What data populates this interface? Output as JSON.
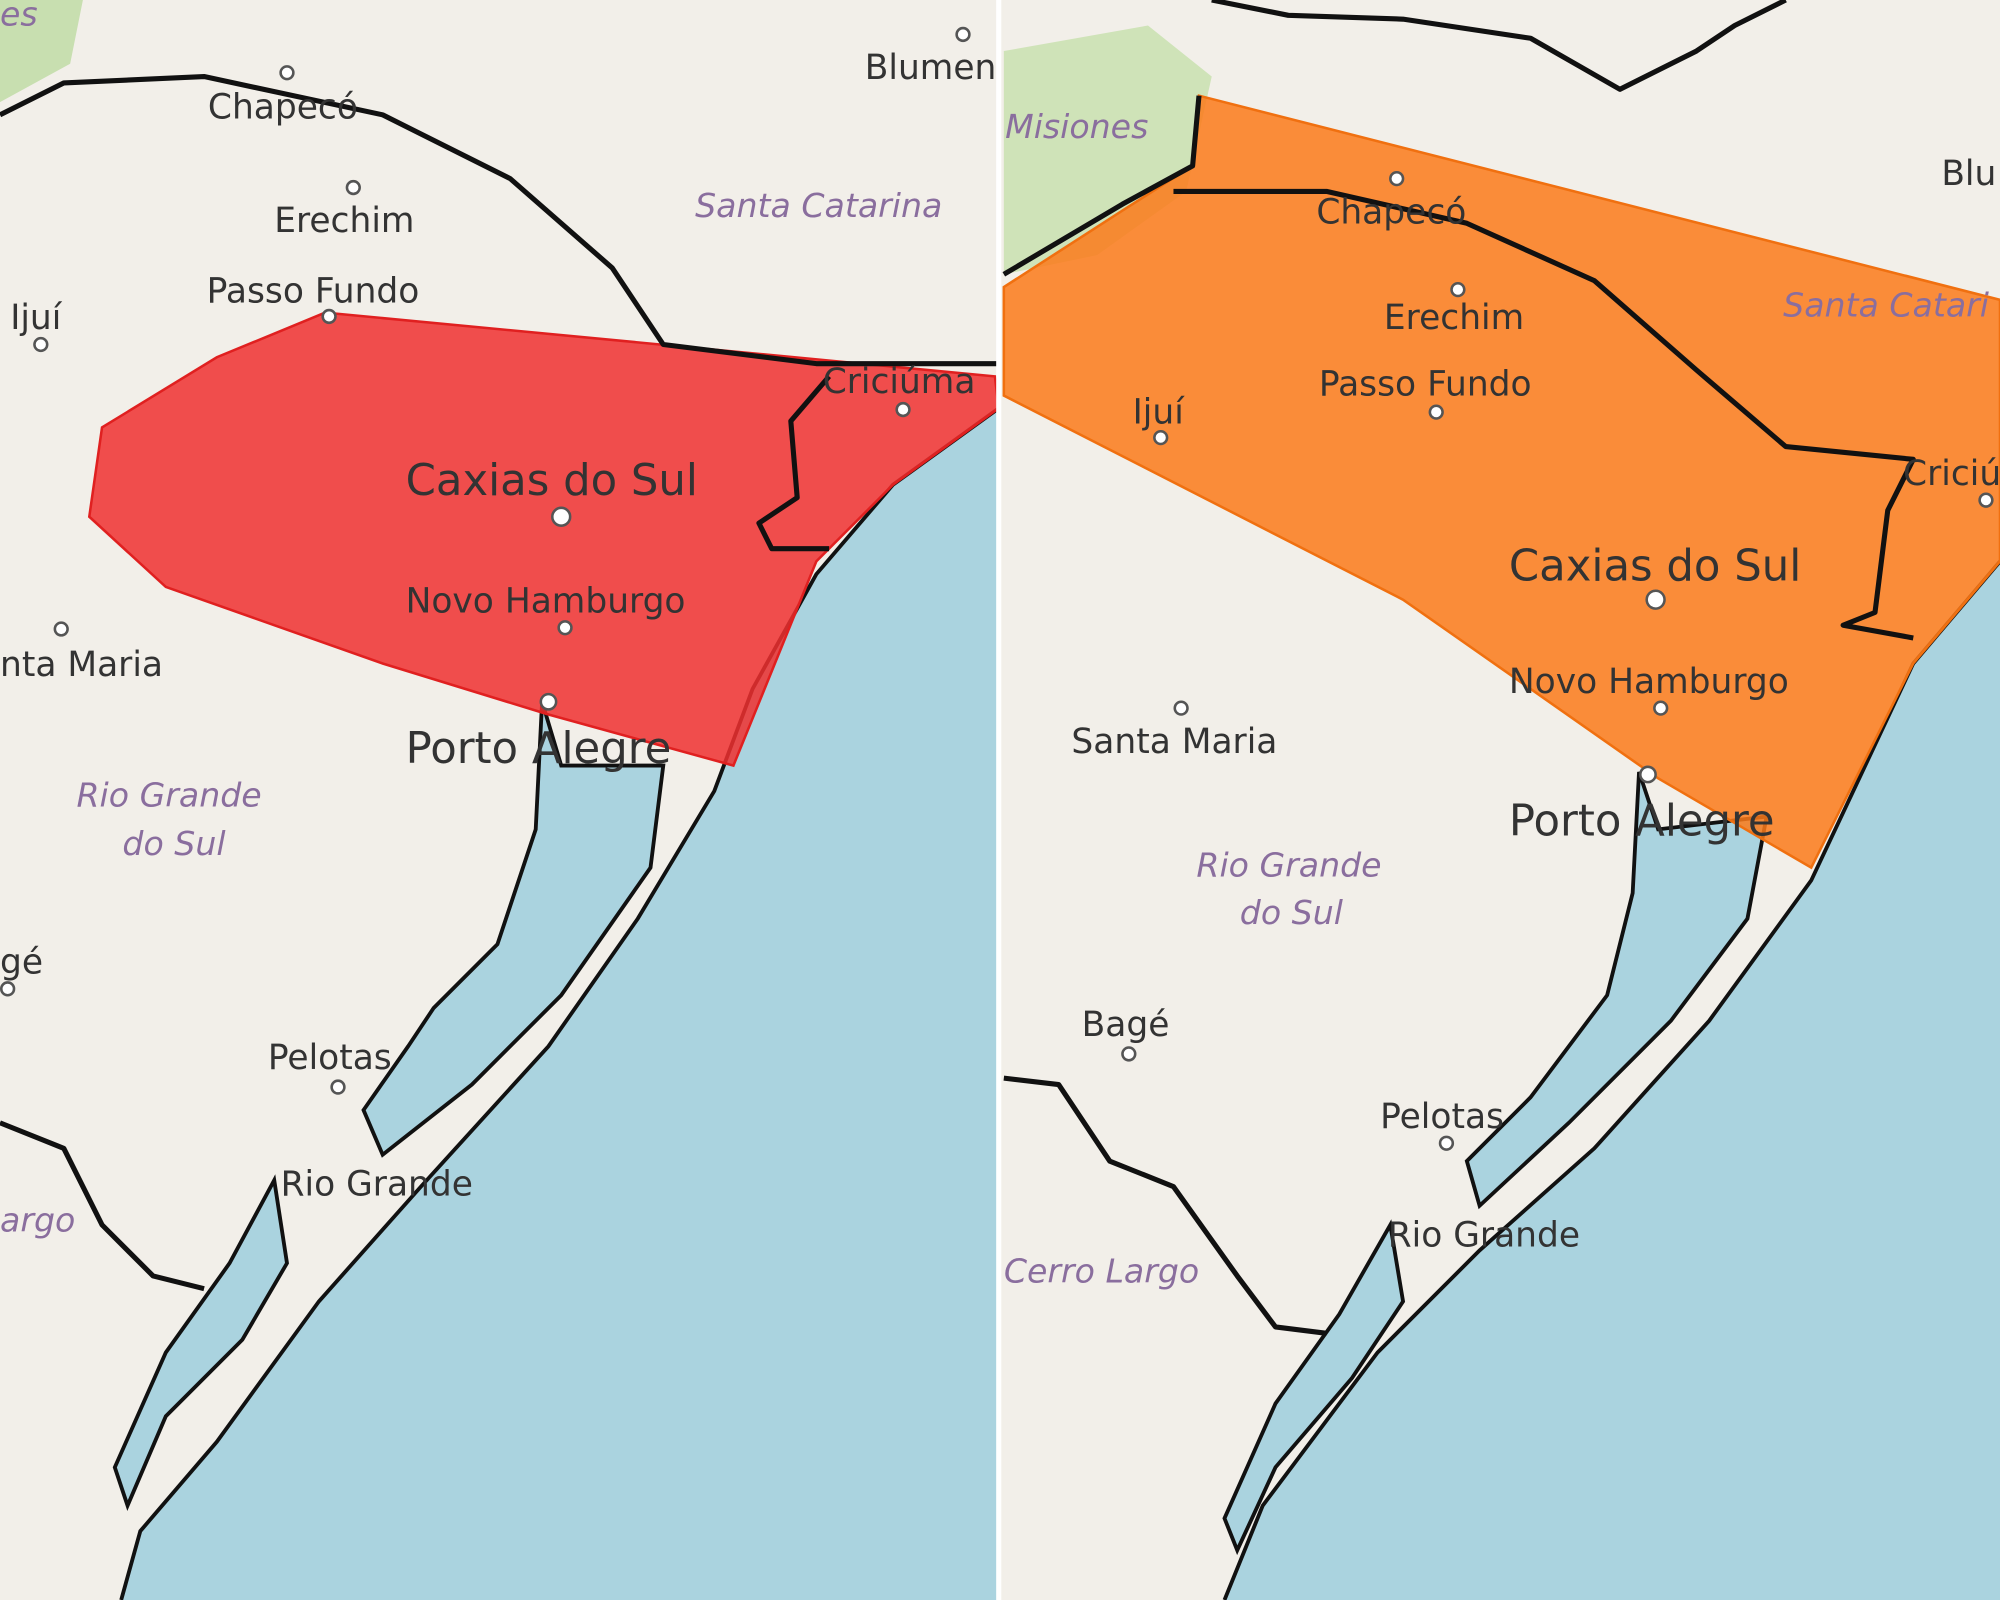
{
  "colors": {
    "land": "#f2efe9",
    "water": "#aad3df",
    "warning_red": "#f03030",
    "warning_orange": "#fb7a1a",
    "border": "#111111",
    "region_label": "#8a6e9e"
  },
  "left_map": {
    "alert_level": "red",
    "labels": [
      "es",
      "Blumen",
      "Chapecó",
      "Erechim",
      "Passo Fundo",
      "Ijuí",
      "Santa Catarina",
      "Criciúma",
      "Caxias do Sul",
      "Novo Hamburgo",
      "nta Maria",
      "Porto Alegre",
      "Rio Grande",
      "do Sul",
      "gé",
      "Pelotas",
      "Rio Grande",
      "argo"
    ]
  },
  "right_map": {
    "alert_level": "orange",
    "labels": [
      "Misiones",
      "Blu",
      "Chapecó",
      "Erechim",
      "Passo Fundo",
      "Ijuí",
      "Santa Catari",
      "Criciú",
      "Caxias do Sul",
      "Novo Hamburgo",
      "Santa Maria",
      "Porto Alegre",
      "Rio Grande",
      "do Sul",
      "Bagé",
      "Pelotas",
      "Rio Grande",
      "Cerro Largo"
    ]
  }
}
